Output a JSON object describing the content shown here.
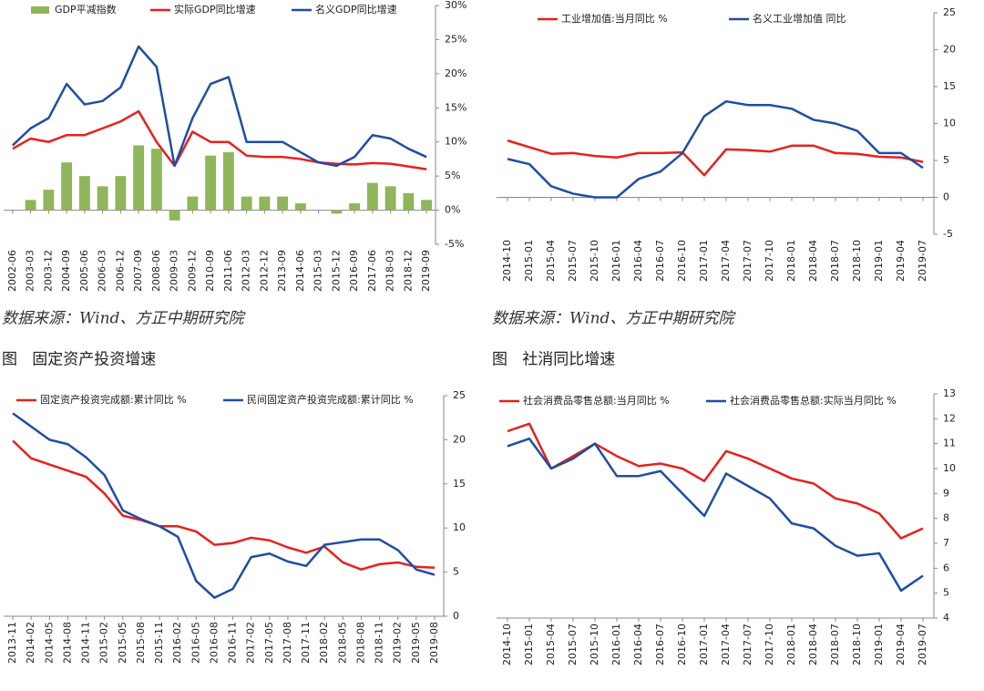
{
  "chart_data": [
    {
      "type": "combo",
      "source": "数据来源：Wind、方正中期研究院",
      "categories": [
        "2002-06",
        "2003-03",
        "2003-12",
        "2004-09",
        "2005-06",
        "2006-03",
        "2006-12",
        "2007-09",
        "2008-06",
        "2009-03",
        "2009-12",
        "2010-09",
        "2011-06",
        "2012-03",
        "2012-12",
        "2013-09",
        "2014-06",
        "2015-03",
        "2015-12",
        "2016-09",
        "2017-06",
        "2018-03",
        "2018-12",
        "2019-09"
      ],
      "series": [
        {
          "name": "GDP平减指数",
          "kind": "bar",
          "color": "#8fb65a",
          "values": [
            0,
            1.5,
            3,
            7,
            5,
            3.5,
            5,
            9.5,
            9,
            -1.5,
            2,
            8,
            8.5,
            2,
            2,
            2,
            1,
            0,
            -0.5,
            1,
            4,
            3.5,
            2.5,
            1.5
          ]
        },
        {
          "name": "实际GDP同比增速",
          "kind": "line",
          "color": "#e8201c",
          "values": [
            9,
            10.5,
            10,
            11,
            11,
            12,
            13,
            14.5,
            10,
            6.5,
            11.5,
            10,
            10,
            8,
            7.8,
            7.8,
            7.5,
            7,
            6.8,
            6.7,
            6.9,
            6.8,
            6.4,
            6
          ]
        },
        {
          "name": "名义GDP同比增速",
          "kind": "line",
          "color": "#1f4ea3",
          "values": [
            9.5,
            12,
            13.5,
            18.5,
            15.5,
            16,
            18,
            24,
            21,
            6.5,
            13.5,
            18.5,
            19.5,
            10,
            10,
            10,
            8.5,
            7,
            6.5,
            7.8,
            11,
            10.5,
            9,
            7.8
          ]
        }
      ],
      "ylim": [
        -5,
        30
      ],
      "yticks": [
        {
          "value": -5,
          "label": "-5%"
        },
        {
          "value": 0,
          "label": "0%"
        },
        {
          "value": 5,
          "label": "5%"
        },
        {
          "value": 10,
          "label": "10%"
        },
        {
          "value": 15,
          "label": "15%"
        },
        {
          "value": 20,
          "label": "20%"
        },
        {
          "value": 25,
          "label": "25%"
        },
        {
          "value": 30,
          "label": "30%"
        }
      ]
    },
    {
      "type": "line",
      "source": "数据来源：Wind、方正中期研究院",
      "categories": [
        "2014-10",
        "2015-01",
        "2015-04",
        "2015-07",
        "2015-10",
        "2016-01",
        "2016-04",
        "2016-07",
        "2016-10",
        "2017-01",
        "2017-04",
        "2017-07",
        "2017-10",
        "2018-01",
        "2018-04",
        "2018-07",
        "2018-10",
        "2019-01",
        "2019-04",
        "2019-07"
      ],
      "series": [
        {
          "name": "工业增加值:当月同比  %",
          "color": "#e8201c",
          "values": [
            7.7,
            6.8,
            5.9,
            6,
            5.6,
            5.4,
            6,
            6,
            6.1,
            3,
            6.5,
            6.4,
            6.2,
            7,
            7,
            6,
            5.9,
            5.5,
            5.4,
            4.8
          ]
        },
        {
          "name": "名义工业增加值 同比",
          "color": "#1f4ea3",
          "values": [
            5.2,
            4.5,
            1.5,
            0.5,
            0,
            0,
            2.5,
            3.5,
            6,
            11,
            13,
            12.5,
            12.5,
            12,
            10.5,
            10,
            9,
            6,
            6,
            4
          ]
        }
      ],
      "ylim": [
        -5,
        25
      ],
      "yticks": [
        -5,
        0,
        5,
        10,
        15,
        20,
        25
      ]
    },
    {
      "type": "line",
      "caption": "图   固定资产投资增速",
      "categories": [
        "2013-11",
        "2014-02",
        "2014-05",
        "2014-08",
        "2014-11",
        "2015-02",
        "2015-05",
        "2015-08",
        "2015-11",
        "2016-02",
        "2016-05",
        "2016-08",
        "2016-11",
        "2017-02",
        "2017-05",
        "2017-08",
        "2017-11",
        "2018-02",
        "2018-05",
        "2018-08",
        "2018-11",
        "2019-02",
        "2019-05",
        "2019-08"
      ],
      "series": [
        {
          "name": "固定资产投资完成额:累计同比  %",
          "color": "#e8201c",
          "values": [
            19.9,
            17.9,
            17.2,
            16.5,
            15.8,
            13.9,
            11.4,
            10.9,
            10.2,
            10.2,
            9.6,
            8.1,
            8.3,
            8.9,
            8.6,
            7.8,
            7.2,
            7.9,
            6.1,
            5.3,
            5.9,
            6.1,
            5.6,
            5.5
          ]
        },
        {
          "name": "民间固定资产投资完成额:累计同比  %",
          "color": "#1f4ea3",
          "values": [
            23,
            21.5,
            20,
            19.5,
            18,
            16,
            12,
            11,
            10.2,
            9,
            4,
            2.1,
            3.1,
            6.7,
            7.1,
            6.2,
            5.7,
            8.1,
            8.4,
            8.7,
            8.7,
            7.5,
            5.3,
            4.7
          ]
        }
      ],
      "ylim": [
        0,
        25
      ],
      "yticks": [
        0,
        5,
        10,
        15,
        20,
        25
      ]
    },
    {
      "type": "line",
      "caption": "图   社消同比增速",
      "categories": [
        "2014-10",
        "2015-01",
        "2015-04",
        "2015-07",
        "2015-10",
        "2016-01",
        "2016-04",
        "2016-07",
        "2016-10",
        "2017-01",
        "2017-04",
        "2017-07",
        "2017-10",
        "2018-01",
        "2018-04",
        "2018-07",
        "2018-10",
        "2019-01",
        "2019-04",
        "2019-07"
      ],
      "series": [
        {
          "name": "社会消费品零售总额:当月同比  %",
          "color": "#e8201c",
          "values": [
            11.5,
            11.8,
            10,
            10.5,
            11,
            10.5,
            10.1,
            10.2,
            10,
            9.5,
            10.7,
            10.4,
            10,
            9.6,
            9.4,
            8.8,
            8.6,
            8.2,
            7.2,
            7.6
          ]
        },
        {
          "name": "社会消费品零售总额:实际当月同比  %",
          "color": "#1f4ea3",
          "values": [
            10.9,
            11.2,
            10,
            10.4,
            11,
            9.7,
            9.7,
            9.9,
            9,
            8.1,
            9.8,
            9.3,
            8.8,
            7.8,
            7.6,
            6.9,
            6.5,
            6.6,
            5.1,
            5.7
          ]
        }
      ],
      "ylim": [
        4,
        13
      ],
      "yticks": [
        4,
        5,
        6,
        7,
        8,
        9,
        10,
        11,
        12,
        13
      ]
    }
  ]
}
